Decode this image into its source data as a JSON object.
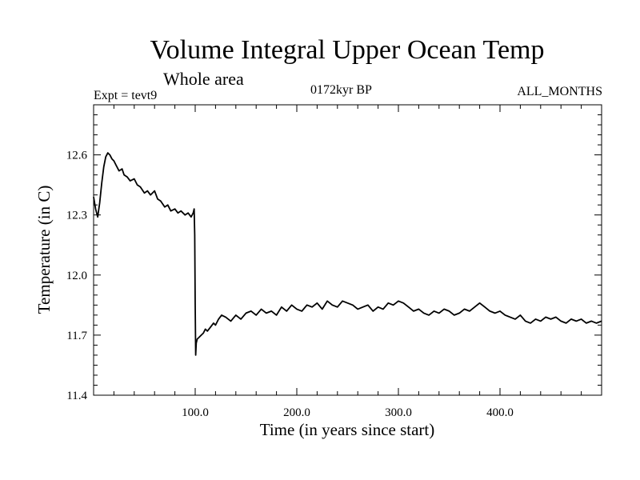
{
  "header": {
    "title": "Volume Integral Upper Ocean Temp",
    "subtitle": "Whole area",
    "experiment": "Expt = tevt9",
    "period": "0172kyr BP",
    "months": "ALL_MONTHS"
  },
  "chart_data": {
    "type": "line",
    "title": "Volume Integral Upper Ocean Temp",
    "subtitle": "Whole area",
    "xlabel": "Time (in years since start)",
    "ylabel": "Temperature (in C)",
    "xlim": [
      0,
      500
    ],
    "ylim": [
      11.4,
      12.85
    ],
    "xticks": [
      100,
      200,
      300,
      400
    ],
    "xtick_labels": [
      "100.0",
      "200.0",
      "300.0",
      "400.0"
    ],
    "yticks": [
      11.4,
      11.7,
      12.0,
      12.3,
      12.6
    ],
    "ytick_labels": [
      "11.4",
      "11.7",
      "12.0",
      "12.3",
      "12.6"
    ],
    "grid": false,
    "series": [
      {
        "color": "#000000",
        "x": [
          0,
          2,
          4,
          6,
          8,
          10,
          12,
          14,
          16,
          18,
          20,
          22,
          25,
          28,
          30,
          33,
          36,
          40,
          43,
          46,
          50,
          53,
          56,
          60,
          63,
          66,
          70,
          73,
          76,
          80,
          83,
          86,
          90,
          93,
          96,
          98,
          99,
          99.5,
          100,
          100.5,
          101,
          102,
          104,
          106,
          108,
          110,
          112,
          115,
          118,
          120,
          123,
          126,
          130,
          135,
          140,
          145,
          150,
          155,
          160,
          165,
          170,
          175,
          180,
          185,
          190,
          195,
          200,
          205,
          210,
          215,
          220,
          225,
          230,
          235,
          240,
          245,
          250,
          255,
          260,
          265,
          270,
          275,
          280,
          285,
          290,
          295,
          300,
          305,
          310,
          315,
          320,
          325,
          330,
          335,
          340,
          345,
          350,
          355,
          360,
          365,
          370,
          375,
          380,
          385,
          390,
          395,
          400,
          405,
          410,
          415,
          420,
          425,
          430,
          435,
          440,
          445,
          450,
          455,
          460,
          465,
          470,
          475,
          480,
          485,
          490,
          495,
          500
        ],
        "values": [
          12.39,
          12.33,
          12.29,
          12.36,
          12.46,
          12.54,
          12.59,
          12.61,
          12.6,
          12.58,
          12.57,
          12.55,
          12.52,
          12.53,
          12.5,
          12.49,
          12.47,
          12.48,
          12.45,
          12.44,
          12.41,
          12.42,
          12.4,
          12.42,
          12.38,
          12.37,
          12.34,
          12.35,
          12.32,
          12.33,
          12.31,
          12.32,
          12.3,
          12.31,
          12.29,
          12.31,
          12.33,
          12.2,
          11.85,
          11.6,
          11.66,
          11.68,
          11.69,
          11.7,
          11.71,
          11.73,
          11.72,
          11.74,
          11.76,
          11.75,
          11.78,
          11.8,
          11.79,
          11.77,
          11.8,
          11.78,
          11.81,
          11.82,
          11.8,
          11.83,
          11.81,
          11.82,
          11.8,
          11.84,
          11.82,
          11.85,
          11.83,
          11.82,
          11.85,
          11.84,
          11.86,
          11.83,
          11.87,
          11.85,
          11.84,
          11.87,
          11.86,
          11.85,
          11.83,
          11.84,
          11.85,
          11.82,
          11.84,
          11.83,
          11.86,
          11.85,
          11.87,
          11.86,
          11.84,
          11.82,
          11.83,
          11.81,
          11.8,
          11.82,
          11.81,
          11.83,
          11.82,
          11.8,
          11.81,
          11.83,
          11.82,
          11.84,
          11.86,
          11.84,
          11.82,
          11.81,
          11.82,
          11.8,
          11.79,
          11.78,
          11.8,
          11.77,
          11.76,
          11.78,
          11.77,
          11.79,
          11.78,
          11.79,
          11.77,
          11.76,
          11.78,
          11.77,
          11.78,
          11.76,
          11.77,
          11.76,
          11.77
        ]
      }
    ]
  }
}
